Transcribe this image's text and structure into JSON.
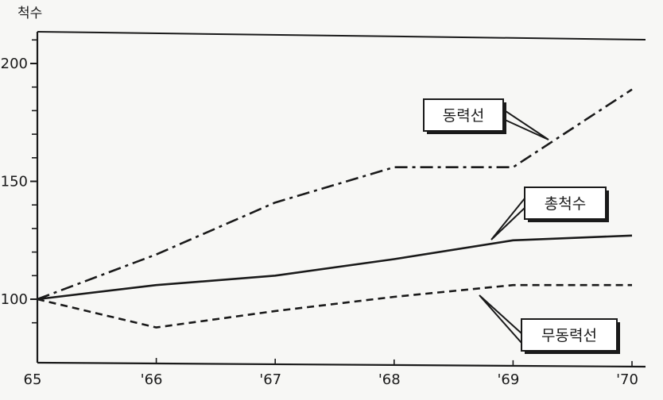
{
  "chart_data": {
    "type": "line",
    "title": "",
    "xlabel": "",
    "ylabel": "척수",
    "x": [
      1965,
      1966,
      1967,
      1968,
      1969,
      1970
    ],
    "x_tick_labels": [
      "65",
      "'66",
      "'67",
      "'68",
      "'69",
      "'70"
    ],
    "y_ticks": [
      100,
      150,
      200
    ],
    "ylim": [
      85,
      213
    ],
    "grid": false,
    "series": [
      {
        "name": "동력선",
        "values": [
          100,
          119,
          141,
          156,
          156,
          189
        ],
        "line_style": "dash-dot"
      },
      {
        "name": "총척수",
        "values": [
          100,
          106,
          110,
          117,
          125,
          127
        ],
        "line_style": "solid"
      },
      {
        "name": "무동력선",
        "values": [
          100,
          88,
          95,
          101,
          106,
          106
        ],
        "line_style": "dashed"
      }
    ],
    "line_color": "#1a1a1a",
    "background_color": "#f7f7f5"
  }
}
